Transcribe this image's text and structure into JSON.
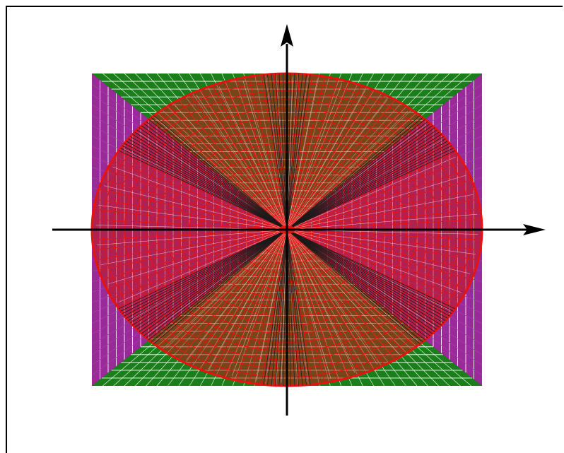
{
  "diagram": {
    "colors": {
      "background": "#ffffff",
      "frame": "#000000",
      "purple": "#8b0e8b",
      "purple_fill": "#9a2a9a",
      "green": "#0b7a0b",
      "green_fill": "#1a7f1a",
      "red": "#e8120f",
      "red_fill": "#c21818",
      "axis": "#000000"
    },
    "icons": {
      "x_axis_arrow": "arrow-right-icon",
      "y_axis_arrow": "arrow-up-icon"
    }
  }
}
